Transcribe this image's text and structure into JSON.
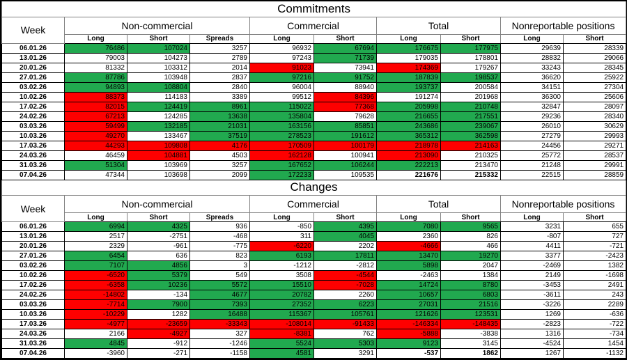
{
  "colors": {
    "positive_fill": "#21a94f",
    "negative_fill": "#fe0000",
    "grid_border": "#000000",
    "header_border": "#808080"
  },
  "columns": {
    "week_label": "Week",
    "groups": [
      {
        "label": "Non-commercial",
        "subcols": [
          "Long",
          "Short",
          "Spreads"
        ]
      },
      {
        "label": "Commercial",
        "subcols": [
          "Long",
          "Short"
        ]
      },
      {
        "label": "Total",
        "subcols": [
          "Long",
          "Short"
        ]
      },
      {
        "label": "Nonreportable positions",
        "subcols": [
          "Long",
          "Short"
        ]
      }
    ]
  },
  "sections": [
    {
      "title": "Commitments",
      "rows": [
        {
          "week": "06.01.26",
          "values": [
            76486,
            107024,
            3257,
            96932,
            67694,
            176675,
            177975,
            29639,
            28339
          ],
          "fills": [
            "g",
            "g",
            "",
            "",
            "g",
            "g",
            "g",
            "",
            ""
          ]
        },
        {
          "week": "13.01.26",
          "values": [
            79003,
            104273,
            2789,
            97243,
            71739,
            179035,
            178801,
            28832,
            29066
          ],
          "fills": [
            "",
            "",
            "",
            "",
            "g",
            "",
            "",
            "",
            ""
          ]
        },
        {
          "week": "20.01.26",
          "values": [
            81332,
            103312,
            2014,
            91023,
            73941,
            174369,
            179267,
            33243,
            28345
          ],
          "fills": [
            "",
            "",
            "",
            "r",
            "",
            "r",
            "",
            "",
            ""
          ]
        },
        {
          "week": "27.01.26",
          "values": [
            87786,
            103948,
            2837,
            97216,
            91752,
            187839,
            198537,
            36620,
            25922
          ],
          "fills": [
            "g",
            "",
            "",
            "g",
            "g",
            "g",
            "g",
            "",
            ""
          ]
        },
        {
          "week": "03.02.26",
          "values": [
            94893,
            108804,
            2840,
            96004,
            88940,
            193737,
            200584,
            34151,
            27304
          ],
          "fills": [
            "g",
            "g",
            "",
            "",
            "",
            "g",
            "",
            "",
            ""
          ]
        },
        {
          "week": "10.02.26",
          "values": [
            88373,
            114183,
            3389,
            99512,
            84396,
            191274,
            201968,
            36300,
            25606
          ],
          "fills": [
            "r",
            "",
            "",
            "",
            "r",
            "",
            "",
            "",
            ""
          ]
        },
        {
          "week": "17.02.26",
          "values": [
            82015,
            124419,
            8961,
            115022,
            77368,
            205998,
            210748,
            32847,
            28097
          ],
          "fills": [
            "r",
            "g",
            "g",
            "g",
            "r",
            "g",
            "g",
            "",
            ""
          ]
        },
        {
          "week": "24.02.26",
          "values": [
            67213,
            124285,
            13638,
            135804,
            79628,
            216655,
            217551,
            29236,
            28340
          ],
          "fills": [
            "r",
            "",
            "g",
            "g",
            "",
            "g",
            "g",
            "",
            ""
          ]
        },
        {
          "week": "03.03.26",
          "values": [
            59499,
            132185,
            21031,
            163156,
            85851,
            243686,
            239067,
            26010,
            30629
          ],
          "fills": [
            "r",
            "g",
            "g",
            "g",
            "g",
            "g",
            "g",
            "",
            ""
          ]
        },
        {
          "week": "10.03.26",
          "values": [
            49270,
            133467,
            37519,
            278523,
            191612,
            365312,
            362598,
            27279,
            29993
          ],
          "fills": [
            "r",
            "",
            "g",
            "g",
            "g",
            "g",
            "g",
            "",
            ""
          ]
        },
        {
          "week": "17.03.26",
          "values": [
            44293,
            109808,
            4176,
            170509,
            100179,
            218978,
            214163,
            24456,
            29271
          ],
          "fills": [
            "r",
            "r",
            "r",
            "r",
            "r",
            "r",
            "r",
            "",
            ""
          ]
        },
        {
          "week": "24.03.26",
          "values": [
            46459,
            104881,
            4503,
            162128,
            100941,
            213090,
            210325,
            25772,
            28537
          ],
          "fills": [
            "",
            "r",
            "",
            "r",
            "",
            "r",
            "",
            "",
            ""
          ]
        },
        {
          "week": "31.03.26",
          "values": [
            51304,
            103969,
            3257,
            167652,
            106244,
            222213,
            213470,
            21248,
            29991
          ],
          "fills": [
            "g",
            "",
            "",
            "g",
            "g",
            "g",
            "",
            "",
            ""
          ]
        },
        {
          "week": "07.04.26",
          "values": [
            47344,
            103698,
            2099,
            172233,
            109535,
            221676,
            215332,
            22515,
            28859
          ],
          "fills": [
            "",
            "",
            "",
            "g",
            "",
            "",
            "",
            "",
            ""
          ],
          "bold": [
            5,
            6
          ]
        }
      ]
    },
    {
      "title": "Changes",
      "rows": [
        {
          "week": "06.01.26",
          "values": [
            6994,
            4325,
            936,
            -850,
            4395,
            7080,
            9565,
            3231,
            655
          ],
          "fills": [
            "g",
            "g",
            "",
            "",
            "g",
            "g",
            "g",
            "",
            ""
          ]
        },
        {
          "week": "13.01.26",
          "values": [
            2517,
            -2751,
            -468,
            311,
            4045,
            2360,
            826,
            -807,
            727
          ],
          "fills": [
            "",
            "",
            "",
            "",
            "g",
            "",
            "",
            "",
            ""
          ]
        },
        {
          "week": "20.01.26",
          "values": [
            2329,
            -961,
            -775,
            -6220,
            2202,
            -4666,
            466,
            4411,
            -721
          ],
          "fills": [
            "",
            "",
            "",
            "r",
            "",
            "r",
            "",
            "",
            ""
          ]
        },
        {
          "week": "27.01.26",
          "values": [
            6454,
            636,
            823,
            6193,
            17811,
            13470,
            19270,
            3377,
            -2423
          ],
          "fills": [
            "g",
            "",
            "",
            "g",
            "g",
            "g",
            "g",
            "",
            ""
          ]
        },
        {
          "week": "03.02.26",
          "values": [
            7107,
            4856,
            3,
            -1212,
            -2812,
            5898,
            2047,
            -2469,
            1382
          ],
          "fills": [
            "g",
            "g",
            "",
            "",
            "",
            "g",
            "",
            "",
            ""
          ]
        },
        {
          "week": "10.02.26",
          "values": [
            -6520,
            5379,
            549,
            3508,
            -4544,
            -2463,
            1384,
            2149,
            -1698
          ],
          "fills": [
            "r",
            "g",
            "",
            "",
            "r",
            "",
            "",
            "",
            ""
          ]
        },
        {
          "week": "17.02.26",
          "values": [
            -6358,
            10236,
            5572,
            15510,
            -7028,
            14724,
            8780,
            -3453,
            2491
          ],
          "fills": [
            "r",
            "g",
            "g",
            "g",
            "r",
            "g",
            "g",
            "",
            ""
          ]
        },
        {
          "week": "24.02.26",
          "values": [
            -14802,
            -134,
            4677,
            20782,
            2260,
            10657,
            6803,
            -3611,
            243
          ],
          "fills": [
            "r",
            "",
            "g",
            "g",
            "",
            "g",
            "g",
            "",
            ""
          ]
        },
        {
          "week": "03.03.26",
          "values": [
            -7714,
            7900,
            7393,
            27352,
            6223,
            27031,
            21516,
            -3226,
            2289
          ],
          "fills": [
            "r",
            "g",
            "g",
            "g",
            "g",
            "g",
            "g",
            "",
            ""
          ]
        },
        {
          "week": "10.03.26",
          "values": [
            -10229,
            1282,
            16488,
            115367,
            105761,
            121626,
            123531,
            1269,
            -636
          ],
          "fills": [
            "r",
            "",
            "g",
            "g",
            "g",
            "g",
            "g",
            "",
            ""
          ]
        },
        {
          "week": "17.03.26",
          "values": [
            -4977,
            -23659,
            -33343,
            -108014,
            -91433,
            -146334,
            -148435,
            -2823,
            -722
          ],
          "fills": [
            "r",
            "r",
            "r",
            "r",
            "r",
            "r",
            "r",
            "",
            ""
          ]
        },
        {
          "week": "24.03.26",
          "values": [
            2166,
            -4927,
            327,
            -8381,
            762,
            -5888,
            -3838,
            1316,
            -734
          ],
          "fills": [
            "",
            "r",
            "",
            "r",
            "",
            "r",
            "",
            "",
            ""
          ]
        },
        {
          "week": "31.03.26",
          "values": [
            4845,
            -912,
            -1246,
            5524,
            5303,
            9123,
            3145,
            -4524,
            1454
          ],
          "fills": [
            "g",
            "",
            "",
            "g",
            "g",
            "g",
            "",
            "",
            ""
          ]
        },
        {
          "week": "07.04.26",
          "values": [
            -3960,
            -271,
            -1158,
            4581,
            3291,
            -537,
            1862,
            1267,
            -1132
          ],
          "fills": [
            "",
            "",
            "",
            "g",
            "",
            "",
            "",
            "",
            ""
          ],
          "bold": [
            5,
            6
          ]
        }
      ]
    }
  ]
}
